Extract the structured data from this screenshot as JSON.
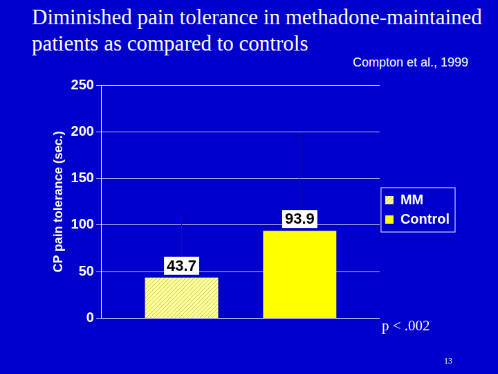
{
  "chart_data": {
    "type": "bar",
    "title": "Diminished pain tolerance in methadone-maintained patients as compared to controls",
    "subtitle": "Compton et al., 1999",
    "y_label": "CP pain tolerance (sec.)",
    "categories": [
      null
    ],
    "series": [
      {
        "name": "MM",
        "color": "#ffff99",
        "values": [
          43.7
        ],
        "errors": [
          62.1
        ]
      },
      {
        "name": "Control",
        "color": "#ffff00",
        "values": [
          93.9
        ],
        "errors": [
          104.1
        ]
      }
    ],
    "ylim": [
      0,
      250
    ],
    "yticks": [
      0,
      50,
      100,
      150,
      200,
      250
    ],
    "grid": true,
    "legend": "right",
    "data_labels": true,
    "annotations": [
      "p < .002",
      "13"
    ]
  }
}
